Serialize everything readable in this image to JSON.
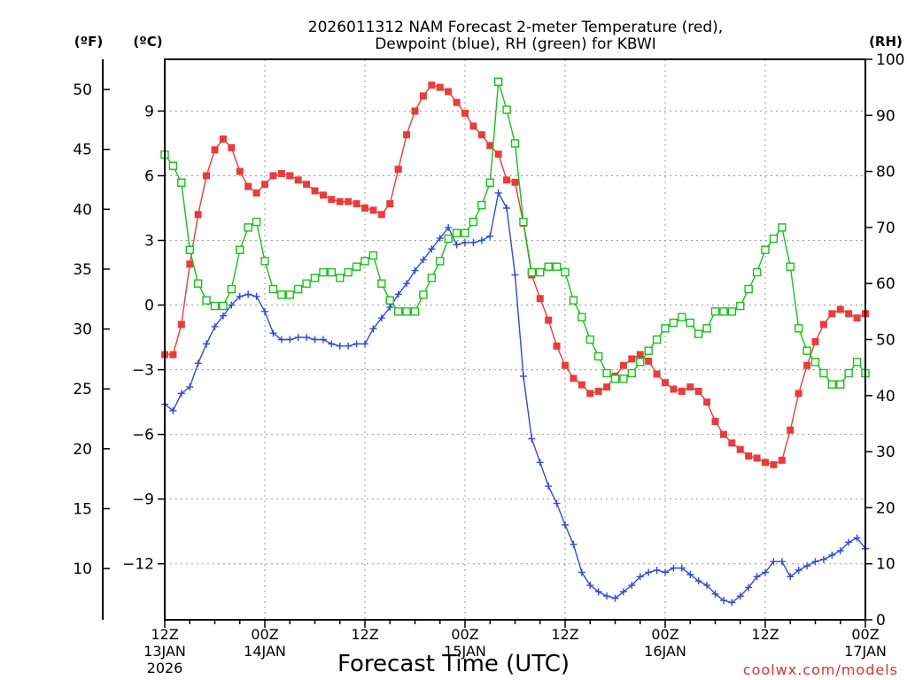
{
  "chart_data": {
    "type": "line",
    "title_line1": "2026011312 NAM Forecast 2-meter Temperature (red),",
    "title_line2": "Dewpoint (blue), RH (green) for KBWI",
    "xlabel": "Forecast Time (UTC)",
    "watermark": "coolwx.com/models",
    "unit_f": "(ºF)",
    "unit_c": "(ºC)",
    "unit_rh": "(RH)",
    "x_hours_range": [
      0,
      84
    ],
    "x_ticks": [
      {
        "h": 0,
        "l1": "12Z",
        "l2": "13JAN",
        "l3": "2026"
      },
      {
        "h": 12,
        "l1": "00Z",
        "l2": "14JAN",
        "l3": ""
      },
      {
        "h": 24,
        "l1": "12Z",
        "l2": "",
        "l3": ""
      },
      {
        "h": 36,
        "l1": "00Z",
        "l2": "15JAN",
        "l3": ""
      },
      {
        "h": 48,
        "l1": "12Z",
        "l2": "",
        "l3": ""
      },
      {
        "h": 60,
        "l1": "00Z",
        "l2": "16JAN",
        "l3": ""
      },
      {
        "h": 72,
        "l1": "12Z",
        "l2": "",
        "l3": ""
      },
      {
        "h": 84,
        "l1": "00Z",
        "l2": "17JAN",
        "l3": ""
      }
    ],
    "c_ticks": [
      "9",
      "6",
      "3",
      "0",
      "−3",
      "−6",
      "−9",
      "−12"
    ],
    "c_tick_values": [
      9,
      6,
      3,
      0,
      -3,
      -6,
      -9,
      -12
    ],
    "c_range": [
      -14.6,
      11.4
    ],
    "f_ticks": [
      "50",
      "45",
      "40",
      "35",
      "30",
      "25",
      "20",
      "15",
      "10"
    ],
    "f_tick_values": [
      50,
      45,
      40,
      35,
      30,
      25,
      20,
      15,
      10
    ],
    "rh_ticks": [
      "100",
      "90",
      "80",
      "70",
      "60",
      "50",
      "40",
      "30",
      "20",
      "10",
      "0"
    ],
    "rh_tick_values": [
      100,
      90,
      80,
      70,
      60,
      50,
      40,
      30,
      20,
      10,
      0
    ],
    "rh_range": [
      0,
      100
    ],
    "colors": {
      "temperature": "#e83c3c",
      "dewpoint": "#2f4bd6",
      "rh": "#18c018",
      "grid": "#9a9a9a",
      "watermark": "#e03030"
    },
    "series": [
      {
        "name": "Temperature (°C)",
        "kind": "temperature",
        "marker": "filled-square",
        "values": [
          [
            0,
            -2.3
          ],
          [
            1,
            -2.3
          ],
          [
            2,
            -0.9
          ],
          [
            3,
            1.9
          ],
          [
            4,
            4.2
          ],
          [
            5,
            6.0
          ],
          [
            6,
            7.2
          ],
          [
            7,
            7.7
          ],
          [
            8,
            7.3
          ],
          [
            9,
            6.2
          ],
          [
            10,
            5.5
          ],
          [
            11,
            5.2
          ],
          [
            12,
            5.6
          ],
          [
            13,
            6.0
          ],
          [
            14,
            6.1
          ],
          [
            15,
            6.0
          ],
          [
            16,
            5.8
          ],
          [
            17,
            5.6
          ],
          [
            18,
            5.3
          ],
          [
            19,
            5.1
          ],
          [
            20,
            4.9
          ],
          [
            21,
            4.8
          ],
          [
            22,
            4.8
          ],
          [
            23,
            4.7
          ],
          [
            24,
            4.5
          ],
          [
            25,
            4.4
          ],
          [
            26,
            4.2
          ],
          [
            27,
            4.7
          ],
          [
            28,
            6.3
          ],
          [
            29,
            7.9
          ],
          [
            30,
            9.0
          ],
          [
            31,
            9.7
          ],
          [
            32,
            10.2
          ],
          [
            33,
            10.1
          ],
          [
            34,
            9.9
          ],
          [
            35,
            9.4
          ],
          [
            36,
            8.9
          ],
          [
            37,
            8.3
          ],
          [
            38,
            7.9
          ],
          [
            39,
            7.4
          ],
          [
            40,
            7.0
          ],
          [
            41,
            5.8
          ],
          [
            42,
            5.7
          ],
          [
            43,
            3.8
          ],
          [
            44,
            1.4
          ],
          [
            45,
            0.3
          ],
          [
            46,
            -0.7
          ],
          [
            47,
            -1.9
          ],
          [
            48,
            -2.8
          ],
          [
            49,
            -3.4
          ],
          [
            50,
            -3.7
          ],
          [
            51,
            -4.1
          ],
          [
            52,
            -4.0
          ],
          [
            53,
            -3.8
          ],
          [
            54,
            -3.3
          ],
          [
            55,
            -2.8
          ],
          [
            56,
            -2.5
          ],
          [
            57,
            -2.3
          ],
          [
            58,
            -2.6
          ],
          [
            59,
            -3.2
          ],
          [
            60,
            -3.6
          ],
          [
            61,
            -3.9
          ],
          [
            62,
            -4.0
          ],
          [
            63,
            -3.8
          ],
          [
            64,
            -4.0
          ],
          [
            65,
            -4.5
          ],
          [
            66,
            -5.4
          ],
          [
            67,
            -6.0
          ],
          [
            68,
            -6.4
          ],
          [
            69,
            -6.7
          ],
          [
            70,
            -7.0
          ],
          [
            71,
            -7.1
          ],
          [
            72,
            -7.3
          ],
          [
            73,
            -7.4
          ],
          [
            74,
            -7.2
          ],
          [
            75,
            -5.8
          ],
          [
            76,
            -4.1
          ],
          [
            77,
            -2.8
          ],
          [
            78,
            -1.7
          ],
          [
            79,
            -0.9
          ],
          [
            80,
            -0.4
          ],
          [
            81,
            -0.2
          ],
          [
            82,
            -0.4
          ],
          [
            83,
            -0.6
          ],
          [
            84,
            -0.4
          ]
        ]
      },
      {
        "name": "Dewpoint (°C)",
        "kind": "dewpoint",
        "marker": "plus",
        "values": [
          [
            0,
            -4.6
          ],
          [
            1,
            -4.9
          ],
          [
            2,
            -4.1
          ],
          [
            3,
            -3.8
          ],
          [
            4,
            -2.7
          ],
          [
            5,
            -1.8
          ],
          [
            6,
            -1.0
          ],
          [
            7,
            -0.5
          ],
          [
            8,
            0.0
          ],
          [
            9,
            0.4
          ],
          [
            10,
            0.5
          ],
          [
            11,
            0.4
          ],
          [
            12,
            -0.3
          ],
          [
            13,
            -1.3
          ],
          [
            14,
            -1.6
          ],
          [
            15,
            -1.6
          ],
          [
            16,
            -1.5
          ],
          [
            17,
            -1.5
          ],
          [
            18,
            -1.6
          ],
          [
            19,
            -1.6
          ],
          [
            20,
            -1.8
          ],
          [
            21,
            -1.9
          ],
          [
            22,
            -1.9
          ],
          [
            23,
            -1.8
          ],
          [
            24,
            -1.8
          ],
          [
            25,
            -1.1
          ],
          [
            26,
            -0.6
          ],
          [
            27,
            -0.1
          ],
          [
            28,
            0.5
          ],
          [
            29,
            1.0
          ],
          [
            30,
            1.6
          ],
          [
            31,
            2.1
          ],
          [
            32,
            2.6
          ],
          [
            33,
            3.1
          ],
          [
            34,
            3.6
          ],
          [
            35,
            2.8
          ],
          [
            36,
            2.9
          ],
          [
            37,
            2.9
          ],
          [
            38,
            3.0
          ],
          [
            39,
            3.2
          ],
          [
            40,
            5.2
          ],
          [
            41,
            4.5
          ],
          [
            42,
            1.4
          ],
          [
            43,
            -3.3
          ],
          [
            44,
            -6.2
          ],
          [
            45,
            -7.3
          ],
          [
            46,
            -8.4
          ],
          [
            47,
            -9.2
          ],
          [
            48,
            -10.2
          ],
          [
            49,
            -11.1
          ],
          [
            50,
            -12.4
          ],
          [
            51,
            -13.0
          ],
          [
            52,
            -13.3
          ],
          [
            53,
            -13.5
          ],
          [
            54,
            -13.6
          ],
          [
            55,
            -13.3
          ],
          [
            56,
            -13.0
          ],
          [
            57,
            -12.6
          ],
          [
            58,
            -12.4
          ],
          [
            59,
            -12.3
          ],
          [
            60,
            -12.4
          ],
          [
            61,
            -12.2
          ],
          [
            62,
            -12.2
          ],
          [
            63,
            -12.5
          ],
          [
            64,
            -12.8
          ],
          [
            65,
            -13.0
          ],
          [
            66,
            -13.4
          ],
          [
            67,
            -13.7
          ],
          [
            68,
            -13.8
          ],
          [
            69,
            -13.5
          ],
          [
            70,
            -13.1
          ],
          [
            71,
            -12.6
          ],
          [
            72,
            -12.4
          ],
          [
            73,
            -11.9
          ],
          [
            74,
            -11.9
          ],
          [
            75,
            -12.6
          ],
          [
            76,
            -12.3
          ],
          [
            77,
            -12.1
          ],
          [
            78,
            -11.9
          ],
          [
            79,
            -11.8
          ],
          [
            80,
            -11.6
          ],
          [
            81,
            -11.4
          ],
          [
            82,
            -11.0
          ],
          [
            83,
            -10.8
          ],
          [
            84,
            -11.3
          ]
        ]
      },
      {
        "name": "RH (%)",
        "kind": "rh",
        "marker": "open-square",
        "values": [
          [
            0,
            83
          ],
          [
            1,
            81
          ],
          [
            2,
            78
          ],
          [
            3,
            66
          ],
          [
            4,
            60
          ],
          [
            5,
            57
          ],
          [
            6,
            56
          ],
          [
            7,
            56
          ],
          [
            8,
            59
          ],
          [
            9,
            66
          ],
          [
            10,
            70
          ],
          [
            11,
            71
          ],
          [
            12,
            64
          ],
          [
            13,
            59
          ],
          [
            14,
            58
          ],
          [
            15,
            58
          ],
          [
            16,
            59
          ],
          [
            17,
            60
          ],
          [
            18,
            61
          ],
          [
            19,
            62
          ],
          [
            20,
            62
          ],
          [
            21,
            61
          ],
          [
            22,
            62
          ],
          [
            23,
            63
          ],
          [
            24,
            64
          ],
          [
            25,
            65
          ],
          [
            26,
            60
          ],
          [
            27,
            57
          ],
          [
            28,
            55
          ],
          [
            29,
            55
          ],
          [
            30,
            55
          ],
          [
            31,
            58
          ],
          [
            32,
            61
          ],
          [
            33,
            64
          ],
          [
            34,
            68
          ],
          [
            35,
            69
          ],
          [
            36,
            69
          ],
          [
            37,
            71
          ],
          [
            38,
            74
          ],
          [
            39,
            78
          ],
          [
            40,
            96
          ],
          [
            41,
            91
          ],
          [
            42,
            85
          ],
          [
            43,
            71
          ],
          [
            44,
            62
          ],
          [
            45,
            62
          ],
          [
            46,
            63
          ],
          [
            47,
            63
          ],
          [
            48,
            62
          ],
          [
            49,
            57
          ],
          [
            50,
            54
          ],
          [
            51,
            50
          ],
          [
            52,
            47
          ],
          [
            53,
            44
          ],
          [
            54,
            43
          ],
          [
            55,
            43
          ],
          [
            56,
            44
          ],
          [
            57,
            46
          ],
          [
            58,
            48
          ],
          [
            59,
            50
          ],
          [
            60,
            52
          ],
          [
            61,
            53
          ],
          [
            62,
            54
          ],
          [
            63,
            53
          ],
          [
            64,
            51
          ],
          [
            65,
            52
          ],
          [
            66,
            55
          ],
          [
            67,
            55
          ],
          [
            68,
            55
          ],
          [
            69,
            56
          ],
          [
            70,
            59
          ],
          [
            71,
            62
          ],
          [
            72,
            66
          ],
          [
            73,
            68
          ],
          [
            74,
            70
          ],
          [
            75,
            63
          ],
          [
            76,
            52
          ],
          [
            77,
            48
          ],
          [
            78,
            46
          ],
          [
            79,
            44
          ],
          [
            80,
            42
          ],
          [
            81,
            42
          ],
          [
            82,
            44
          ],
          [
            83,
            46
          ],
          [
            84,
            44
          ]
        ]
      }
    ]
  }
}
